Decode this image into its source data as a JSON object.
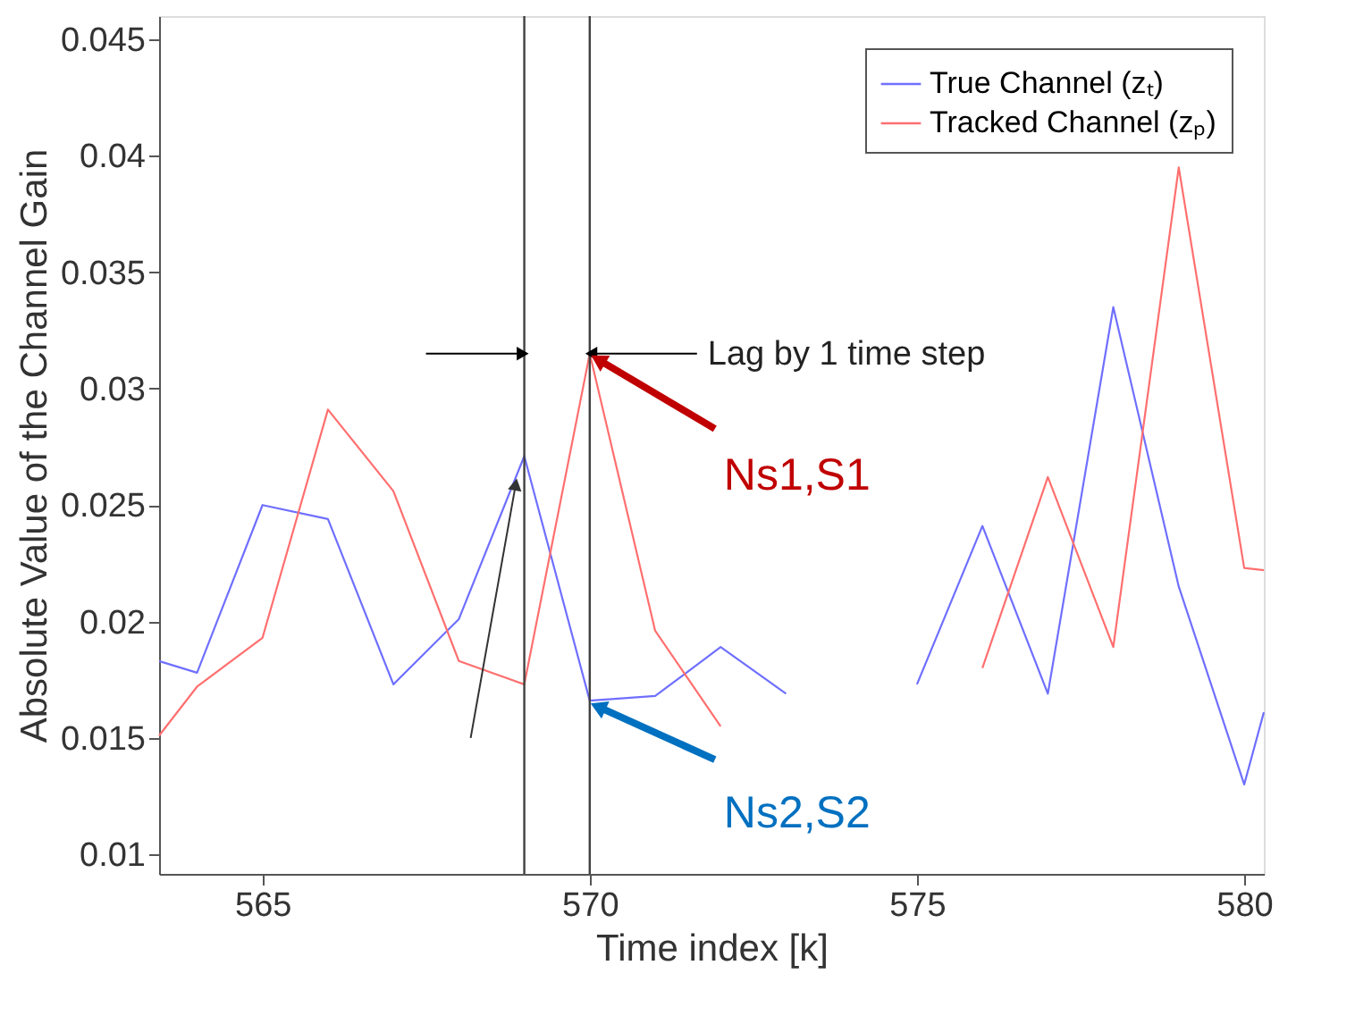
{
  "chart_data": {
    "type": "line",
    "xlabel": "Time index [k]",
    "ylabel": "Absolute Value of the Channel Gain",
    "xlim": [
      563.42,
      580.3
    ],
    "ylim": [
      0.00916,
      0.046
    ],
    "xticks": [
      565,
      570,
      575,
      580
    ],
    "yticks": [
      0.01,
      0.015,
      0.02,
      0.025,
      0.03,
      0.035,
      0.04,
      0.045
    ],
    "series": [
      {
        "name": "True Channel (zₜ)",
        "color": "#6f6fff",
        "x": [
          563.42,
          564,
          565,
          566,
          567,
          568,
          569,
          570,
          571,
          572,
          573,
          574,
          575,
          576,
          577,
          578,
          579,
          580,
          580.3
        ],
        "values": [
          0.0183,
          0.0178,
          0.025,
          0.0244,
          0.0173,
          0.0201,
          0.0271,
          0.0166,
          0.0168,
          0.0189,
          0.0169,
          null,
          0.0173,
          0.0241,
          0.0169,
          0.0335,
          0.0215,
          0.013,
          0.0161
        ]
      },
      {
        "name": "Tracked Channel (zₚ)",
        "color": "#ff6f6f",
        "x": [
          563.42,
          564,
          565,
          566,
          567,
          568,
          569,
          570,
          571,
          572,
          573,
          574,
          575,
          576,
          577,
          578,
          579,
          580,
          580.3
        ],
        "values": [
          0.0151,
          0.0172,
          0.0193,
          0.0291,
          0.0256,
          0.0183,
          0.0173,
          0.0315,
          0.0196,
          0.0155,
          null,
          null,
          null,
          0.018,
          0.0262,
          0.0189,
          0.0395,
          0.0223,
          0.0222
        ]
      }
    ],
    "ref_lines": [
      {
        "axis": "x",
        "value": 569,
        "color": "#404040"
      },
      {
        "axis": "x",
        "value": 570,
        "color": "#404040"
      }
    ],
    "annotations": [
      "Lag by 1 time step",
      {
        "text": "Ns1,S1",
        "x": 570,
        "y": 0.0315
      },
      {
        "text": "Ns2,S2",
        "x": 570,
        "y": 0.0166
      }
    ],
    "legend": "top right",
    "grid": false,
    "marker": "none",
    "line_style": "solid"
  }
}
